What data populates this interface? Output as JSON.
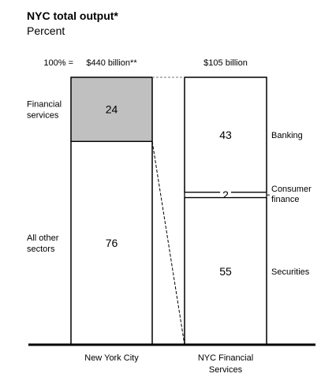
{
  "chart_data": {
    "type": "bar",
    "title": "NYC total output*",
    "subtitle": "Percent",
    "total_prefix": "100% =",
    "categories": [
      "New York City",
      "NYC Financial Services"
    ],
    "category_display": [
      [
        "New York City"
      ],
      [
        "NYC Financial",
        "Services"
      ]
    ],
    "totals": [
      "$440 billion**",
      "$105 billion"
    ],
    "series": [
      {
        "category": "New York City",
        "segments": [
          {
            "label": "Financial services",
            "label_lines": [
              "Financial",
              "services"
            ],
            "value": 24,
            "fill": "#c0c0c0"
          },
          {
            "label": "All other sectors",
            "label_lines": [
              "All other",
              "sectors"
            ],
            "value": 76,
            "fill": "#ffffff"
          }
        ]
      },
      {
        "category": "NYC Financial Services",
        "segments": [
          {
            "label": "Banking",
            "label_lines": [
              "Banking"
            ],
            "value": 43,
            "fill": "#ffffff"
          },
          {
            "label": "Consumer finance",
            "label_lines": [
              "Consumer",
              "finance"
            ],
            "value": 2,
            "fill": "#ffffff"
          },
          {
            "label": "Securities",
            "label_lines": [
              "Securities"
            ],
            "value": 55,
            "fill": "#ffffff"
          }
        ]
      }
    ],
    "ylim": [
      0,
      100
    ],
    "stacked": true,
    "connector": "dashed lines linking the Financial services segment to the NYC Financial Services bar"
  }
}
